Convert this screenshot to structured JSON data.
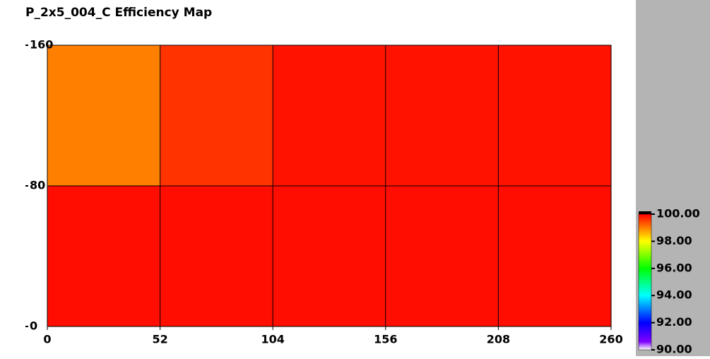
{
  "chart_data": {
    "type": "heatmap",
    "title": "P_2x5_004_C Efficiency Map",
    "xlim": [
      0,
      260
    ],
    "xticks": [
      0,
      52,
      104,
      156,
      208,
      260
    ],
    "ylim": [
      0,
      160
    ],
    "yticks": [
      0,
      80,
      160
    ],
    "z": [
      [
        99.9,
        99.9,
        99.9,
        99.9,
        99.9
      ],
      [
        99.0,
        99.6,
        99.85,
        99.85,
        99.85
      ]
    ],
    "grid": true,
    "colorbar": {
      "lim": [
        90,
        100
      ],
      "ticks": [
        {
          "value": 90,
          "label": "90.00"
        },
        {
          "value": 92,
          "label": "92.00"
        },
        {
          "value": 94,
          "label": "94.00"
        },
        {
          "value": 96,
          "label": "96.00"
        },
        {
          "value": 98,
          "label": "98.00"
        },
        {
          "value": 100,
          "label": "100.00"
        }
      ],
      "colorscale": [
        [
          90,
          "#ffffff"
        ],
        [
          90.6,
          "#8000ff"
        ],
        [
          92,
          "#0000ff"
        ],
        [
          94,
          "#00ffff"
        ],
        [
          96,
          "#00ff00"
        ],
        [
          98,
          "#ffff00"
        ],
        [
          99,
          "#ff8000"
        ],
        [
          100,
          "#ff0000"
        ]
      ]
    }
  }
}
